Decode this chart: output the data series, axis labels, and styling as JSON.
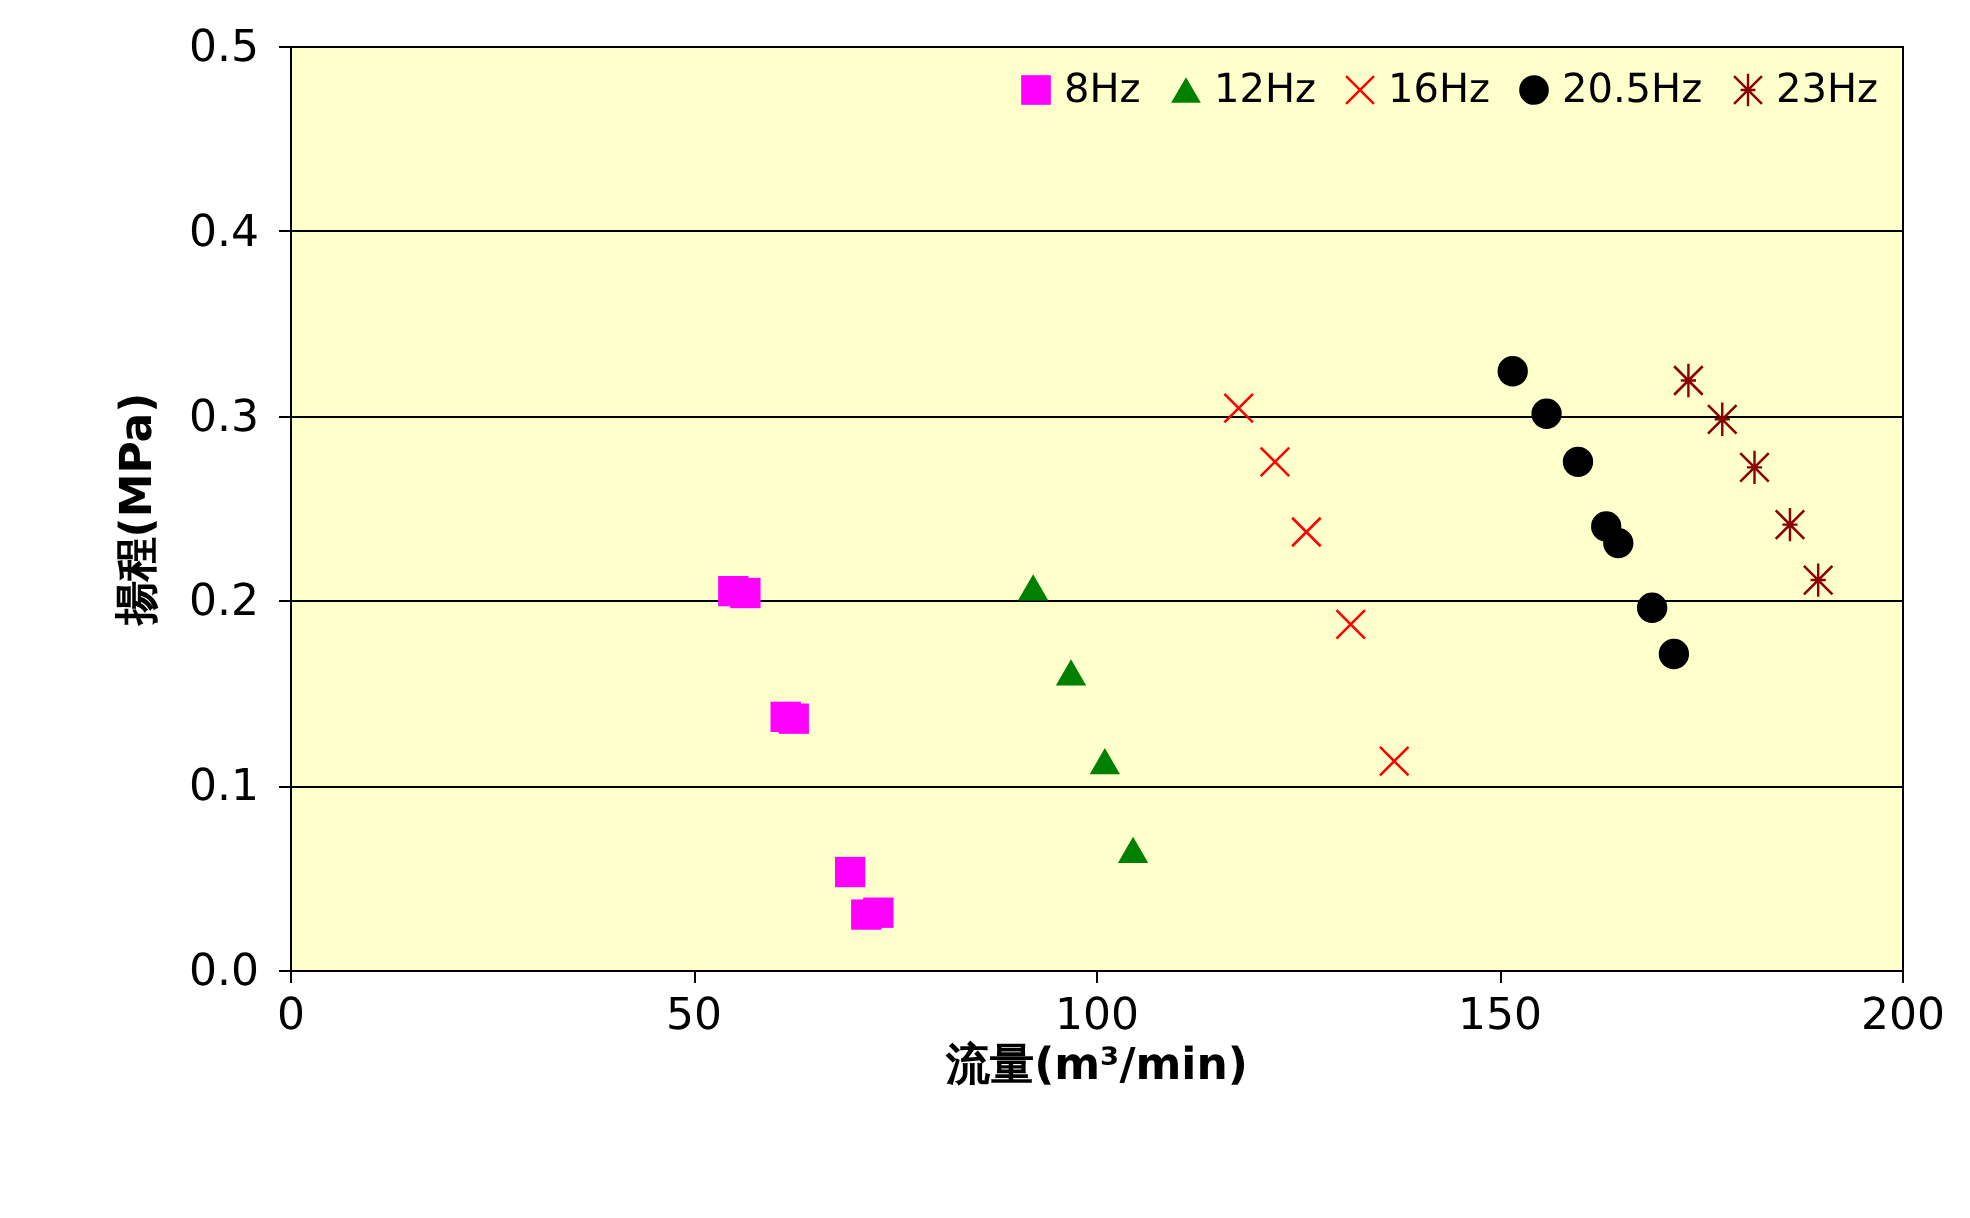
{
  "chart_data": {
    "type": "scatter",
    "xlabel": "流量(m³/min)",
    "ylabel": "揚程(MPa)",
    "xlim": [
      0,
      200
    ],
    "xticks": [
      0,
      50,
      100,
      150,
      200
    ],
    "ylim": [
      0,
      0.5
    ],
    "yticks": [
      {
        "value": 0,
        "label": "0.0"
      },
      0.1,
      0.2,
      0.3,
      0.4,
      0.5
    ],
    "grid": "y",
    "legend": "top right",
    "series": [
      {
        "name": "8Hz",
        "color": "#ff00ff",
        "marker": "square",
        "x": [
          55,
          56.5,
          61.5,
          62.5,
          69.5,
          71.5,
          73
        ],
        "values": [
          0.205,
          0.204,
          0.137,
          0.136,
          0.053,
          0.03,
          0.031
        ]
      },
      {
        "name": "12Hz",
        "color": "#008000",
        "marker": "triangle",
        "x": [
          92.2,
          96.9,
          101.1,
          104.6
        ],
        "values": [
          0.207,
          0.161,
          0.113,
          0.065
        ]
      },
      {
        "name": "16Hz",
        "color": "#ff0000",
        "marker": "cross",
        "x": [
          117.7,
          122.2,
          126.1,
          131.6,
          137.0
        ],
        "values": [
          0.304,
          0.275,
          0.237,
          0.187,
          0.113
        ]
      },
      {
        "name": "20.5Hz",
        "color": "#000000",
        "marker": "circle",
        "x": [
          151.7,
          155.9,
          159.8,
          163.3,
          164.8,
          169.0,
          171.7
        ],
        "values": [
          0.324,
          0.301,
          0.275,
          0.24,
          0.231,
          0.196,
          0.171
        ]
      },
      {
        "name": "23Hz",
        "color": "#8b0000",
        "marker": "star",
        "x": [
          173.5,
          177.7,
          181.7,
          186.1,
          189.6
        ],
        "values": [
          0.319,
          0.298,
          0.272,
          0.241,
          0.211
        ]
      }
    ]
  }
}
